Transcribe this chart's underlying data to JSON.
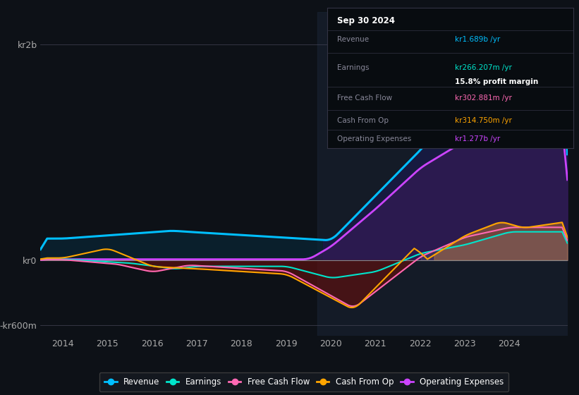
{
  "background_color": "#0d1117",
  "title": "Sep 30 2024",
  "y_labels": [
    "kr2b",
    "kr0",
    "-kr600m"
  ],
  "y_ticks": [
    2000000000,
    0,
    -600000000
  ],
  "x_ticks": [
    2014,
    2015,
    2016,
    2017,
    2018,
    2019,
    2020,
    2021,
    2022,
    2023,
    2024
  ],
  "ylim": [
    -700000000,
    2300000000
  ],
  "xlim": [
    2013.5,
    2025.3
  ],
  "colors": {
    "revenue": "#00bfff",
    "earnings": "#00e5cc",
    "free_cash_flow": "#ff69b4",
    "cash_from_op": "#ffa500",
    "operating_expenses": "#cc44ff"
  },
  "info_box": {
    "date": "Sep 30 2024",
    "revenue_label": "Revenue",
    "revenue_value": "kr1.689b /yr",
    "earnings_label": "Earnings",
    "earnings_value": "kr266.207m /yr",
    "profit_margin": "15.8% profit margin",
    "fcf_label": "Free Cash Flow",
    "fcf_value": "kr302.881m /yr",
    "cfop_label": "Cash From Op",
    "cfop_value": "kr314.750m /yr",
    "opex_label": "Operating Expenses",
    "opex_value": "kr1.277b /yr"
  },
  "legend": [
    {
      "label": "Revenue",
      "color": "#00bfff"
    },
    {
      "label": "Earnings",
      "color": "#00e5cc"
    },
    {
      "label": "Free Cash Flow",
      "color": "#ff69b4"
    },
    {
      "label": "Cash From Op",
      "color": "#ffa500"
    },
    {
      "label": "Operating Expenses",
      "color": "#cc44ff"
    }
  ]
}
